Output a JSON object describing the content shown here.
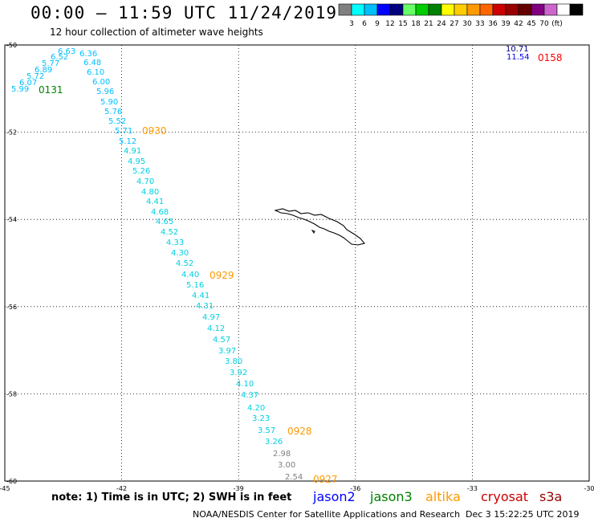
{
  "header": {
    "title": "00:00 — 11:59 UTC 11/24/2019",
    "subtitle": "12 hour collection of altimeter wave heights"
  },
  "colorbar": {
    "colors": [
      "#808080",
      "#00ffff",
      "#00bfff",
      "#0000ff",
      "#00007f",
      "#66ff66",
      "#00cc00",
      "#008000",
      "#ffff00",
      "#ffcc00",
      "#ff9900",
      "#ff6600",
      "#cc0000",
      "#990000",
      "#660000",
      "#800080",
      "#cc66cc",
      "#ffffff",
      "#000000"
    ],
    "labels": [
      "3",
      "6",
      "9",
      "12",
      "15",
      "18",
      "21",
      "24",
      "27",
      "30",
      "33",
      "36",
      "39",
      "42",
      "45",
      "70",
      "(ft)"
    ]
  },
  "map": {
    "lon_range": [
      -45,
      -30
    ],
    "lat_range": [
      -60,
      -50
    ],
    "lon_ticks": [
      "-45",
      "-42",
      "-39",
      "-36",
      "-33",
      "-30"
    ],
    "lat_ticks": [
      "-50",
      "-52",
      "-54",
      "-56",
      "-58",
      "-60"
    ],
    "swh_labels": [
      {
        "v": "6.63",
        "c": "#00bfff"
      },
      {
        "v": "6.36",
        "c": "#00bfff"
      },
      {
        "v": "6.52",
        "c": "#00bfff"
      },
      {
        "v": "6.48",
        "c": "#00bfff"
      },
      {
        "v": "5.77",
        "c": "#00bfff"
      },
      {
        "v": "6.89",
        "c": "#00bfff"
      },
      {
        "v": "6.10",
        "c": "#00bfff"
      },
      {
        "v": "5.72",
        "c": "#00bfff"
      },
      {
        "v": "6.07",
        "c": "#00bfff"
      },
      {
        "v": "6.00",
        "c": "#00bfff"
      },
      {
        "v": "5.99",
        "c": "#00bfff"
      },
      {
        "v": "5.96",
        "c": "#00bfff"
      },
      {
        "v": "5.90",
        "c": "#00bfff"
      },
      {
        "v": "5.76",
        "c": "#00bfff"
      },
      {
        "v": "5.52",
        "c": "#00bfff"
      },
      {
        "v": "5.71",
        "c": "#00bfff"
      },
      {
        "v": "5.12",
        "c": "#00bfff"
      },
      {
        "v": "4.91",
        "c": "#00d0e0"
      },
      {
        "v": "4.95",
        "c": "#00d0e0"
      },
      {
        "v": "5.26",
        "c": "#00d0e0"
      },
      {
        "v": "4.70",
        "c": "#00d0e0"
      },
      {
        "v": "4.80",
        "c": "#00d0e0"
      },
      {
        "v": "4.41",
        "c": "#00d0e0"
      },
      {
        "v": "4.68",
        "c": "#00d0e0"
      },
      {
        "v": "4.65",
        "c": "#00d0e0"
      },
      {
        "v": "4.52",
        "c": "#00d0e0"
      },
      {
        "v": "4.33",
        "c": "#00d0e0"
      },
      {
        "v": "4.30",
        "c": "#00d0e0"
      },
      {
        "v": "4.52",
        "c": "#00d0e0"
      },
      {
        "v": "4.40",
        "c": "#00d0e0"
      },
      {
        "v": "5.16",
        "c": "#00d0e0"
      },
      {
        "v": "4.41",
        "c": "#00d0e0"
      },
      {
        "v": "4.31",
        "c": "#00d0e0"
      },
      {
        "v": "4.97",
        "c": "#00d0e0"
      },
      {
        "v": "4.12",
        "c": "#00d0e0"
      },
      {
        "v": "4.57",
        "c": "#00d0e0"
      },
      {
        "v": "3.97",
        "c": "#00d0e0"
      },
      {
        "v": "3.80",
        "c": "#00d0e0"
      },
      {
        "v": "3.92",
        "c": "#00d0e0"
      },
      {
        "v": "4.10",
        "c": "#00d0e0"
      },
      {
        "v": "4.37",
        "c": "#00d0e0"
      },
      {
        "v": "4.20",
        "c": "#00d0e0"
      },
      {
        "v": "3.23",
        "c": "#00d0e0"
      },
      {
        "v": "3.57",
        "c": "#00d0e0"
      },
      {
        "v": "3.26",
        "c": "#00d0e0"
      },
      {
        "v": "2.98",
        "c": "#808080"
      },
      {
        "v": "3.00",
        "c": "#808080"
      },
      {
        "v": "2.54",
        "c": "#808080"
      },
      {
        "v": "10.71",
        "c": "#00007f"
      },
      {
        "v": "11.54",
        "c": "#0000ff"
      }
    ],
    "time_labels": [
      {
        "v": "0131",
        "c": "#008000"
      },
      {
        "v": "0930",
        "c": "#ff9900"
      },
      {
        "v": "0929",
        "c": "#ff9900"
      },
      {
        "v": "0928",
        "c": "#ff9900"
      },
      {
        "v": "0927",
        "c": "#ff9900"
      },
      {
        "v": "0158",
        "c": "#ff0000"
      }
    ]
  },
  "footer": {
    "note": "note: 1) Time is in UTC; 2) SWH is in feet",
    "satellites": [
      {
        "name": "jason2",
        "color": "#0000ff"
      },
      {
        "name": "jason3",
        "color": "#008000"
      },
      {
        "name": "altika",
        "color": "#ff9900"
      },
      {
        "name": "cryosat",
        "color": "#cc0000"
      },
      {
        "name": "s3a",
        "color": "#990000"
      }
    ],
    "credit": "NOAA/NESDIS Center for Satellite Applications and Research",
    "timestamp": "Dec  3 15:22:25 UTC 2019"
  }
}
